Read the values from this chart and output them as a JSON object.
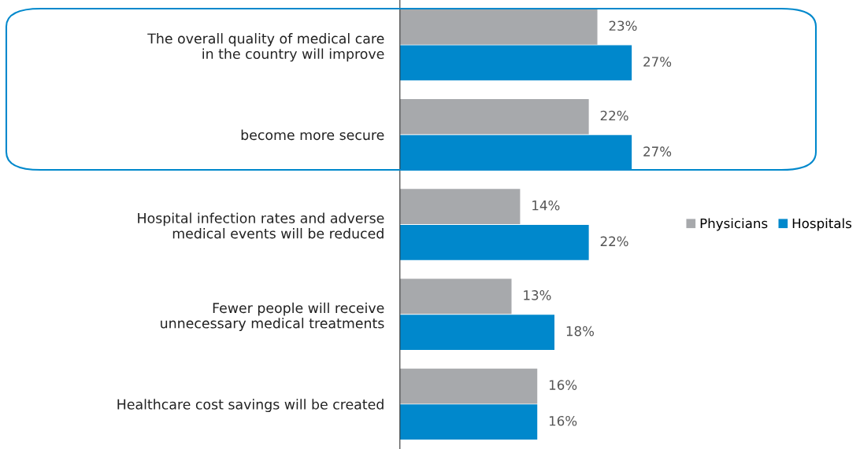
{
  "chart_data": {
    "type": "bar",
    "orientation": "horizontal",
    "categories": [
      "The overall quality of medical care\nin the country will improve",
      "become more secure",
      "Hospital infection rates and adverse\nmedical events will be reduced",
      "Fewer people will receive\nunnecessary medical treatments",
      "Healthcare cost savings will be created"
    ],
    "series": [
      {
        "name": "Physicians",
        "color": "#a7a9ac",
        "values": [
          23,
          22,
          14,
          13,
          16
        ],
        "value_labels": [
          "23%",
          "22%",
          "14%",
          "13%",
          "16%"
        ]
      },
      {
        "name": "Hospitals",
        "color": "#0088cc",
        "values": [
          27,
          27,
          22,
          18,
          16
        ],
        "value_labels": [
          "27%",
          "27%",
          "22%",
          "18%",
          "16%"
        ]
      }
    ],
    "legend": "right",
    "grid": false
  }
}
